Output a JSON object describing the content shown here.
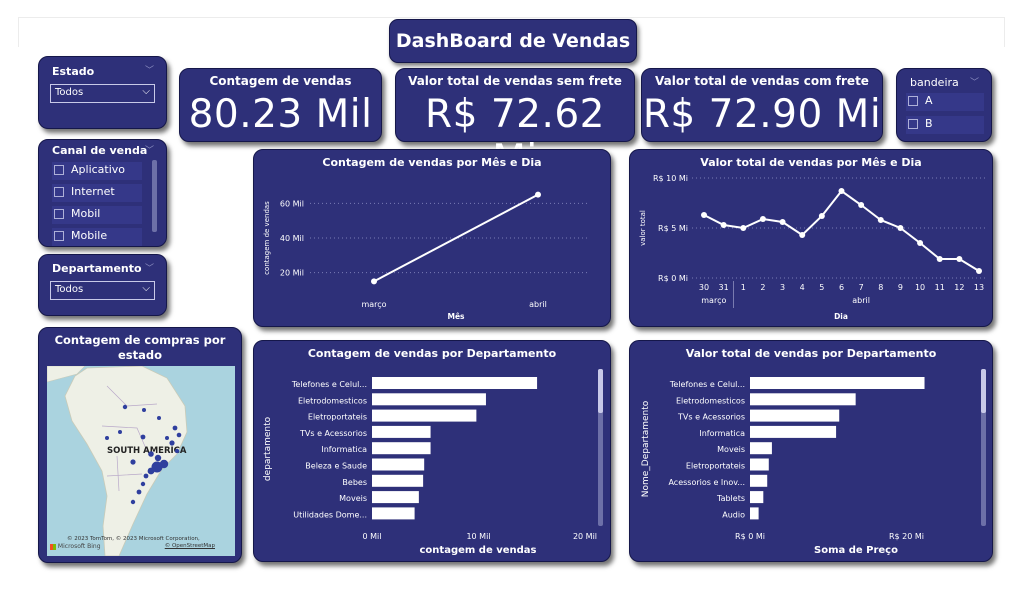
{
  "dashboard_title": "DashBoard de Vendas",
  "estado": {
    "label": "Estado",
    "selected": "Todos"
  },
  "canal": {
    "label": "Canal de venda",
    "options": [
      "Aplicativo",
      "Internet",
      "Mobil",
      "Mobile"
    ]
  },
  "departamento": {
    "label": "Departamento",
    "selected": "Todos"
  },
  "bandeira": {
    "label": "bandeira",
    "options": [
      "A",
      "B"
    ]
  },
  "kpis": [
    {
      "title": "Contagem de vendas",
      "value": "80.23 Mil"
    },
    {
      "title": "Valor total de vendas sem frete",
      "value": "R$ 72.62 Mi"
    },
    {
      "title": "Valor total de vendas com frete",
      "value": "R$ 72.90 Mi"
    }
  ],
  "map": {
    "title": "Contagem de compras por estado",
    "continent_label": "SOUTH AMERICA",
    "copyright": "© 2023 TomTom, © 2023 Microsoft Corporation,",
    "osm": "© OpenStreetMap",
    "brand": "Microsoft Bing"
  },
  "icons": {
    "chevron": "chevron-down-icon",
    "checkbox": "checkbox-icon"
  },
  "colors": {
    "panel": "#2e3079",
    "line": "#ffffff",
    "bar": "#ffffff",
    "map_water": "#aad3df",
    "map_land": "#eef0e6"
  },
  "chart_data": [
    {
      "type": "line",
      "title": "Contagem de vendas por Mês e Dia",
      "xlabel": "Mês",
      "ylabel": "contagem de vendas",
      "categories": [
        "março",
        "abril"
      ],
      "values": [
        15,
        65
      ],
      "y_ticks": [
        "20 Mil",
        "40 Mil",
        "60 Mil"
      ],
      "y_tick_values": [
        20,
        40,
        60
      ],
      "ylim": [
        10,
        70
      ],
      "grid": true
    },
    {
      "type": "line",
      "title": "Valor total de vendas por Mês e Dia",
      "xlabel": "Dia",
      "ylabel": "valor total",
      "categories": [
        "30",
        "31",
        "1",
        "2",
        "3",
        "4",
        "5",
        "6",
        "7",
        "8",
        "9",
        "10",
        "11",
        "12",
        "13"
      ],
      "groups": [
        "março",
        "abril"
      ],
      "values": [
        6.3,
        5.3,
        5.0,
        5.9,
        5.6,
        4.3,
        6.2,
        8.7,
        7.3,
        5.8,
        5.0,
        3.5,
        1.9,
        1.9,
        0.7
      ],
      "y_ticks": [
        "R$ 0 Mi",
        "R$ 5 Mi",
        "R$ 10 Mi"
      ],
      "y_tick_values": [
        0,
        5,
        10
      ],
      "ylim": [
        0,
        10
      ],
      "grid": true
    },
    {
      "type": "bar",
      "title": "Contagem de vendas por Departamento",
      "xlabel": "contagem de vendas",
      "ylabel": "departamento",
      "categories": [
        "Telefones e Celul...",
        "Eletrodomesticos",
        "Eletroportateis",
        "TVs e Acessorios",
        "Informatica",
        "Beleza e Saude",
        "Bebes",
        "Moveis",
        "Utilidades Dome..."
      ],
      "values": [
        15.5,
        10.7,
        9.8,
        5.5,
        5.5,
        4.9,
        4.8,
        4.4,
        4.0
      ],
      "x_ticks": [
        "0 Mil",
        "10 Mil",
        "20 Mil"
      ],
      "x_tick_values": [
        0,
        10,
        20
      ],
      "xlim": [
        0,
        20
      ]
    },
    {
      "type": "bar",
      "title": "Valor total de vendas por Departamento",
      "xlabel": "Soma de Preço",
      "ylabel": "Nome_Departamento",
      "categories": [
        "Telefones e Celul...",
        "Eletrodomesticos",
        "TVs e Acessorios",
        "Informatica",
        "Moveis",
        "Eletroportateis",
        "Acessorios e Inov...",
        "Tablets",
        "Audio"
      ],
      "values": [
        22.3,
        13.5,
        11.4,
        11.0,
        2.8,
        2.4,
        2.2,
        1.7,
        1.1
      ],
      "x_ticks": [
        "R$ 0 Mi",
        "R$ 20 Mi"
      ],
      "x_tick_values": [
        0,
        20
      ],
      "xlim": [
        0,
        23
      ]
    }
  ]
}
